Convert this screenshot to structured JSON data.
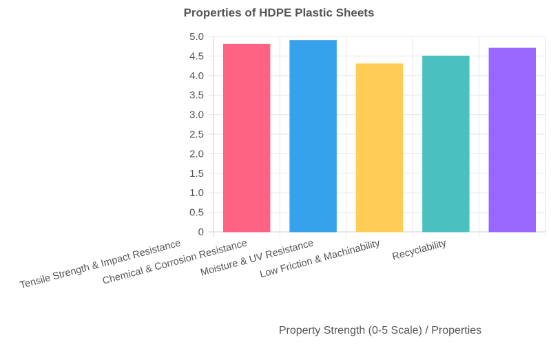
{
  "chart_data": {
    "type": "bar",
    "title": "Properties of HDPE Plastic Sheets",
    "xlabel": "Property Strength (0-5 Scale) / Properties",
    "ylabel": "",
    "categories": [
      "Tensile Strength & Impact Resistance",
      "Chemical & Corrosion Resistance",
      "Moisture & UV Resistance",
      "Low Friction & Machinability",
      "Recyclability"
    ],
    "values": [
      4.8,
      4.9,
      4.3,
      4.5,
      4.7
    ],
    "colors": [
      "#ff6384",
      "#36a2eb",
      "#ffcd56",
      "#4bc0c0",
      "#9966ff"
    ],
    "ylim": [
      0,
      5
    ],
    "yticks": [
      "0",
      "0.5",
      "1.0",
      "1.5",
      "2.0",
      "2.5",
      "3.0",
      "3.5",
      "4.0",
      "4.5",
      "5.0"
    ],
    "grid": true,
    "legend": "none"
  }
}
